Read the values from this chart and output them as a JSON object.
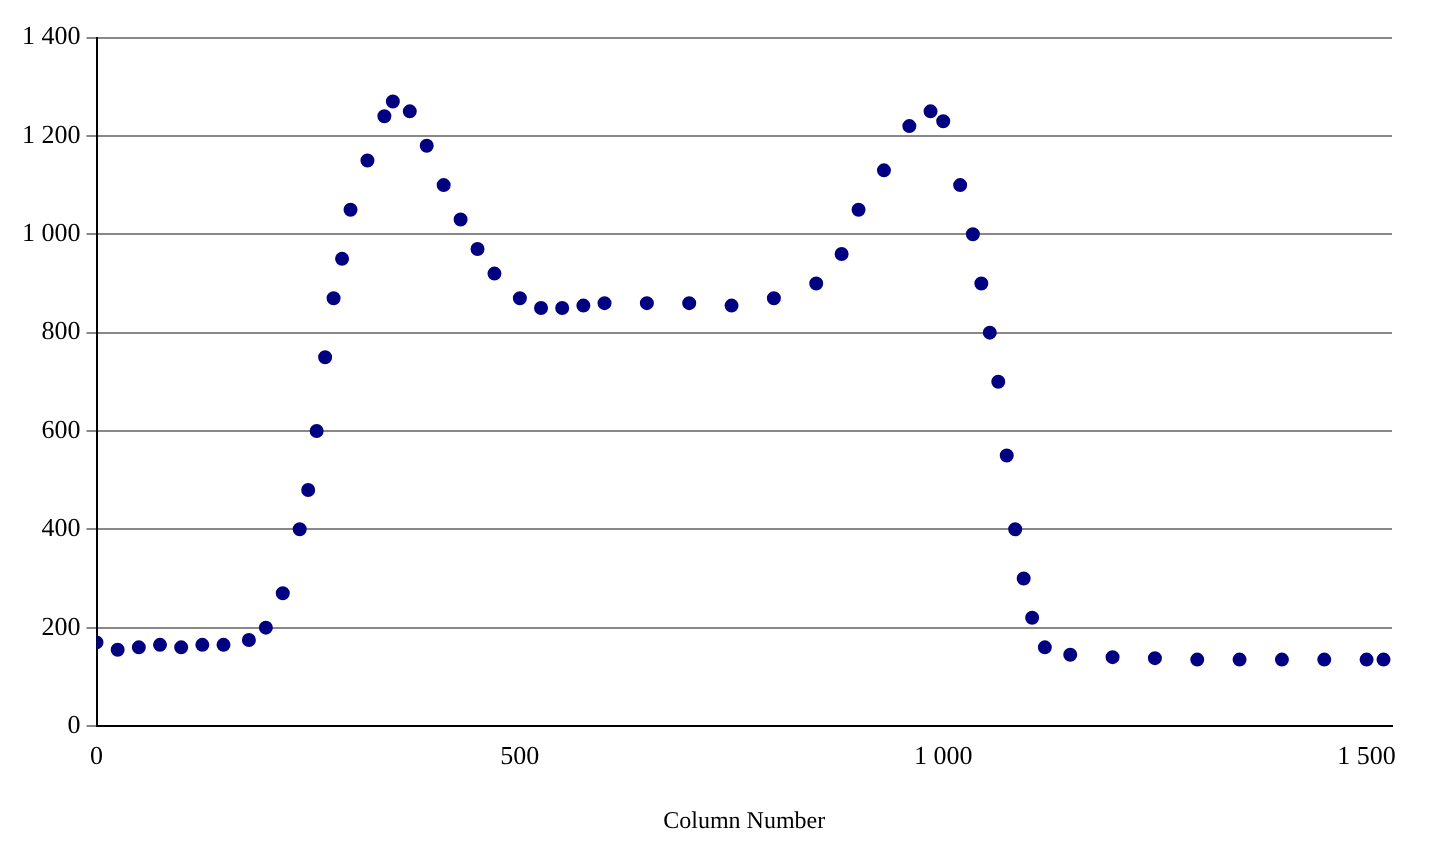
{
  "chart_data": {
    "type": "scatter",
    "xlabel": "Column Number",
    "xlim": [
      0,
      1530
    ],
    "xticks": [
      0,
      500,
      {
        "value": 1000,
        "label": "1 000"
      },
      {
        "value": 1500,
        "label": "1 500"
      }
    ],
    "ylim": [
      0,
      1400
    ],
    "yticks": [
      0,
      200,
      400,
      600,
      800,
      {
        "value": 1000,
        "label": "1 000"
      },
      {
        "value": 1200,
        "label": "1 200"
      },
      {
        "value": 1400,
        "label": "1 400"
      }
    ],
    "grid": "y",
    "marker": "circle",
    "series": [
      {
        "color": "#000080",
        "x": [
          0,
          25,
          50,
          75,
          100,
          125,
          150,
          180,
          200,
          220,
          240,
          250,
          260,
          270,
          280,
          290,
          300,
          320,
          340,
          350,
          370,
          390,
          410,
          430,
          450,
          470,
          500,
          525,
          550,
          575,
          600,
          650,
          700,
          750,
          800,
          850,
          880,
          900,
          930,
          960,
          985,
          1000,
          1020,
          1035,
          1045,
          1055,
          1065,
          1075,
          1085,
          1095,
          1105,
          1120,
          1150,
          1200,
          1250,
          1300,
          1350,
          1400,
          1450,
          1500,
          1520
        ],
        "values": [
          170,
          155,
          160,
          165,
          160,
          165,
          165,
          175,
          200,
          270,
          400,
          480,
          600,
          750,
          870,
          950,
          1050,
          1150,
          1240,
          1270,
          1250,
          1180,
          1100,
          1030,
          970,
          920,
          870,
          850,
          850,
          855,
          860,
          860,
          860,
          855,
          870,
          900,
          960,
          1050,
          1130,
          1220,
          1250,
          1230,
          1100,
          1000,
          900,
          800,
          700,
          550,
          400,
          300,
          220,
          160,
          145,
          140,
          138,
          135,
          135,
          135,
          135,
          135,
          135
        ]
      }
    ]
  }
}
